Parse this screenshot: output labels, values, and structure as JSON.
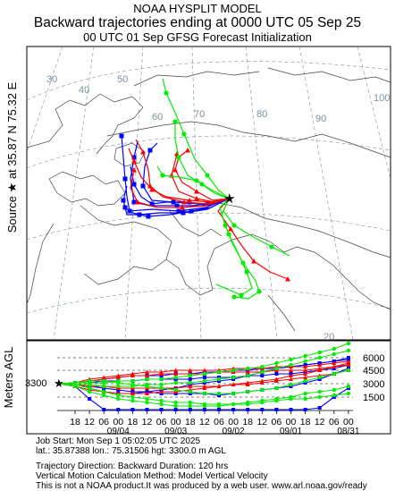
{
  "header": {
    "line1": "NOAA HYSPLIT MODEL",
    "line2": "Backward trajectories ending at 0000 UTC 05 Sep 25",
    "line3": "00 UTC 01 Sep    GFSG  Forecast Initialization"
  },
  "source_label": "Source ★ at   35.87 N   75.32 E",
  "map": {
    "lon_labels": [
      "30",
      "40",
      "50",
      "60",
      "70",
      "80",
      "90",
      "100"
    ],
    "lat_labels": [
      "20"
    ],
    "source_marker": "star-icon"
  },
  "vertical": {
    "axis_label": "Meters AGL",
    "source_height": "3300",
    "height_ticks": [
      "6000",
      "4500",
      "3000",
      "1500"
    ],
    "time_ticks": [
      "18",
      "12",
      "06",
      "00",
      "18",
      "12",
      "06",
      "00",
      "18",
      "12",
      "06",
      "00",
      "18",
      "12",
      "06",
      "00",
      "18",
      "12",
      "06",
      "00"
    ],
    "date_labels": [
      "09/04",
      "09/03",
      "09/02",
      "09/01",
      "08/31"
    ]
  },
  "info": {
    "job": "Job Start: Mon Sep  1 05:02:05 UTC 2025",
    "location": "lat.: 35.87388   lon.: 75.31506    hgt: 3300.0 m AGL",
    "direction": "Trajectory Direction: Backward       Duration: 120 hrs",
    "vertical_method": "Vertical Motion Calculation Method: Model Vertical Velocity",
    "disclaimer": "This is not a NOAA product.It was produced by a web user. www.arl.noaa.gov/ready"
  },
  "colors": {
    "red": "#ff0000",
    "blue": "#0000ff",
    "green": "#00ee00",
    "map_lines": "#444444",
    "grid_lines": "#7a8fa6"
  }
}
